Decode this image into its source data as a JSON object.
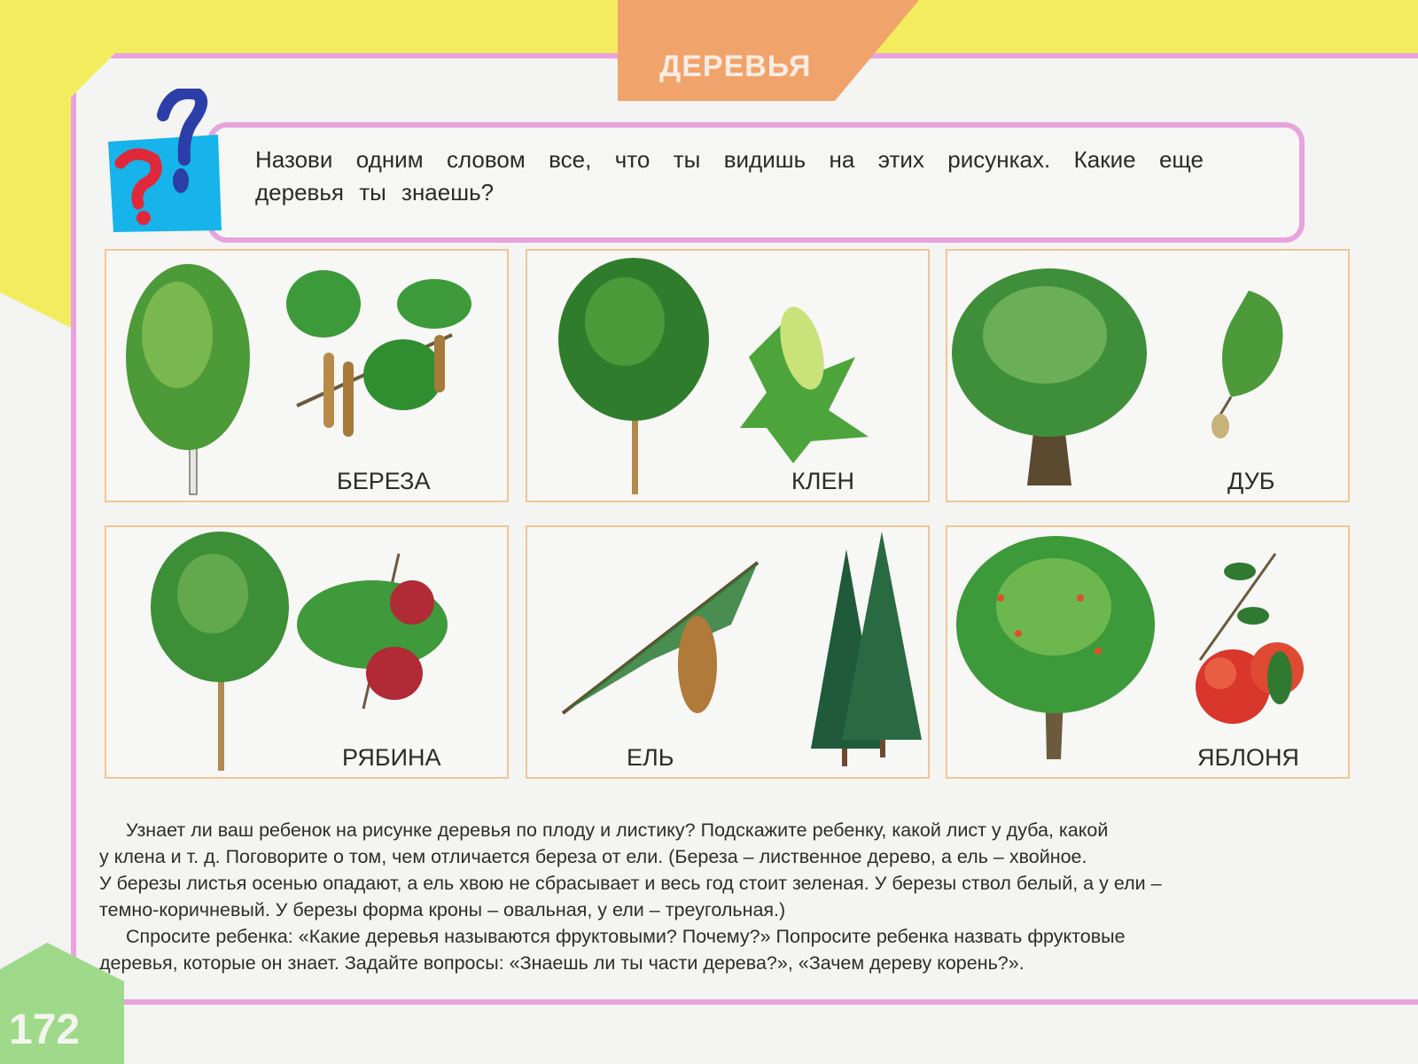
{
  "header": {
    "title": "ДЕРЕВЬЯ"
  },
  "question": {
    "icon": "question-marks-icon",
    "text": "Назови одним словом все, что ты видишь на этих рисунках. Какие еще деревья ты знаешь?"
  },
  "cards": [
    {
      "label": "БЕРЕЗА",
      "tree": "birch-tree",
      "detail": "birch-branch-with-catkins"
    },
    {
      "label": "КЛЕН",
      "tree": "maple-tree",
      "detail": "maple-leaf-with-seeds"
    },
    {
      "label": "ДУБ",
      "tree": "oak-tree",
      "detail": "oak-leaf-with-acorn"
    },
    {
      "label": "РЯБИНА",
      "tree": "rowan-tree",
      "detail": "rowan-berries"
    },
    {
      "label": "ЕЛЬ",
      "tree": "spruce-branch-with-cone",
      "detail": "spruce-trees"
    },
    {
      "label": "ЯБЛОНЯ",
      "tree": "apple-tree",
      "detail": "apple-branch-with-fruit"
    }
  ],
  "notes": {
    "paragraph1": [
      "Узнает ли ваш ребенок на рисунке деревья по плоду и листику? Подскажите ребенку, какой лист у дуба, какой",
      "у клена и т. д. Поговорите о том, чем отличается береза от ели.  (Береза – лиственное дерево, а ель – хвойное.",
      "У березы листья осенью опадают, а ель хвою не сбрасывает и весь год стоит зеленая. У березы ствол белый, а у ели –",
      "темно-коричневый. У березы форма кроны – овальная, у ели – треугольная.)"
    ],
    "paragraph2": [
      "Спросите ребенка: «Какие деревья называются фруктовыми? Почему?» Попросите ребенка назвать фруктовые",
      "деревья, которые он знает.  Задайте вопросы: «Знаешь ли ты части дерева?»,  «Зачем дереву корень?»."
    ]
  },
  "page_number": "172",
  "colors": {
    "yellow": "#f2ec5e",
    "pink_border": "#e8a3dc",
    "orange_tab": "#f0a36a",
    "green_corner": "#9fd98a",
    "card_border": "#f1c596"
  }
}
